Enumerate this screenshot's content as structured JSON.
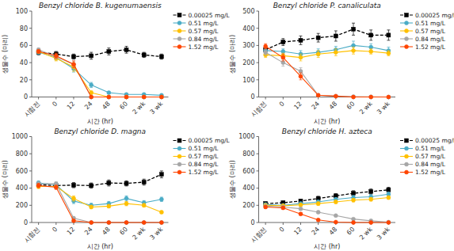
{
  "chart_data": [
    {
      "type": "line",
      "title": "Benzyl chloride B. kugenumaensis",
      "ylabel": "생물수 (마리)",
      "xlabel": "시간 (hr)",
      "categories": [
        "시험전",
        "0",
        "12",
        "24",
        "48",
        "60",
        "2 wk",
        "3 wk"
      ],
      "ylim": [
        0,
        100
      ],
      "yticks": [
        0,
        20,
        40,
        60,
        80,
        100
      ],
      "grid": false,
      "legend": "upper right",
      "series": [
        {
          "name": "0.00025 mg/L",
          "color": "black",
          "line_style": "dashed",
          "marker": "square",
          "values": [
            52,
            50,
            47,
            48,
            53,
            55,
            49,
            47
          ],
          "yerr": [
            3,
            3,
            3,
            4,
            4,
            4,
            3,
            3
          ]
        },
        {
          "name": "0.51 mg/L",
          "color": "#4bacc6",
          "line_style": "solid",
          "marker": "circle",
          "values": [
            52,
            46,
            33,
            14,
            5,
            3,
            3,
            2
          ],
          "yerr": [
            2,
            3,
            4,
            3,
            1,
            1,
            1,
            1
          ]
        },
        {
          "name": "0.57 mg/L",
          "color": "#ffc000",
          "line_style": "solid",
          "marker": "circle",
          "values": [
            53,
            45,
            35,
            5,
            0,
            0,
            0,
            0
          ],
          "yerr": [
            2,
            3,
            5,
            2,
            0,
            0,
            0,
            0
          ]
        },
        {
          "name": "0.84 mg/L",
          "color": "#a6a6a6",
          "line_style": "solid",
          "marker": "circle",
          "values": [
            55,
            47,
            38,
            0,
            0,
            0,
            0,
            0
          ],
          "yerr": [
            2,
            3,
            4,
            0,
            0,
            0,
            0,
            0
          ]
        },
        {
          "name": "1.52 mg/L",
          "color": "#ff4500",
          "line_style": "solid",
          "marker": "circle",
          "values": [
            53,
            48,
            38,
            0,
            0,
            0,
            0,
            0
          ],
          "yerr": [
            2,
            3,
            4,
            0,
            0,
            0,
            0,
            0
          ]
        }
      ]
    },
    {
      "type": "line",
      "title": "Benzyl chloride P. canaliculata",
      "ylabel": "생물수 (마리)",
      "xlabel": "시간 (hr)",
      "categories": [
        "시험전",
        "0",
        "12",
        "24",
        "48",
        "60",
        "2 wk",
        "3 wk"
      ],
      "ylim": [
        0,
        500
      ],
      "yticks": [
        0,
        100,
        200,
        300,
        400,
        500
      ],
      "grid": false,
      "legend": "upper right",
      "series": [
        {
          "name": "0.00025 mg/L",
          "color": "black",
          "line_style": "dashed",
          "marker": "square",
          "values": [
            275,
            320,
            330,
            345,
            355,
            395,
            360,
            360
          ],
          "yerr": [
            20,
            20,
            25,
            25,
            30,
            35,
            30,
            30
          ]
        },
        {
          "name": "0.51 mg/L",
          "color": "#4bacc6",
          "line_style": "solid",
          "marker": "circle",
          "values": [
            270,
            265,
            250,
            260,
            275,
            300,
            290,
            270
          ],
          "yerr": [
            15,
            15,
            20,
            20,
            20,
            25,
            20,
            20
          ]
        },
        {
          "name": "0.57 mg/L",
          "color": "#ffc000",
          "line_style": "solid",
          "marker": "circle",
          "values": [
            245,
            240,
            230,
            250,
            260,
            270,
            265,
            255
          ],
          "yerr": [
            15,
            15,
            20,
            20,
            20,
            20,
            15,
            15
          ]
        },
        {
          "name": "0.84 mg/L",
          "color": "#a6a6a6",
          "line_style": "solid",
          "marker": "circle",
          "values": [
            260,
            200,
            150,
            10,
            5,
            2,
            1,
            0
          ],
          "yerr": [
            15,
            20,
            20,
            5,
            2,
            1,
            1,
            0
          ]
        },
        {
          "name": "1.52 mg/L",
          "color": "#ff4500",
          "line_style": "solid",
          "marker": "circle",
          "values": [
            295,
            230,
            120,
            10,
            5,
            0,
            0,
            0
          ],
          "yerr": [
            15,
            20,
            20,
            5,
            2,
            0,
            0,
            0
          ]
        }
      ]
    },
    {
      "type": "line",
      "title": "Benzyl chloride D. magna",
      "ylabel": "생물수 (마리)",
      "xlabel": "시간 (hr)",
      "categories": [
        "시험전",
        "0",
        "12",
        "24",
        "48",
        "60",
        "2 wk",
        "3 wk"
      ],
      "ylim": [
        0,
        1000
      ],
      "yticks": [
        0,
        200,
        400,
        600,
        800,
        1000
      ],
      "grid": false,
      "legend": "upper right",
      "series": [
        {
          "name": "0.00025 mg/L",
          "color": "black",
          "line_style": "dashed",
          "marker": "square",
          "values": [
            440,
            430,
            435,
            430,
            460,
            455,
            470,
            560
          ],
          "yerr": [
            30,
            30,
            30,
            30,
            35,
            30,
            35,
            40
          ]
        },
        {
          "name": "0.51 mg/L",
          "color": "#4bacc6",
          "line_style": "solid",
          "marker": "circle",
          "values": [
            460,
            440,
            250,
            200,
            220,
            280,
            230,
            270
          ],
          "yerr": [
            25,
            25,
            30,
            25,
            25,
            30,
            25,
            25
          ]
        },
        {
          "name": "0.57 mg/L",
          "color": "#ffc000",
          "line_style": "solid",
          "marker": "circle",
          "values": [
            420,
            420,
            280,
            180,
            190,
            220,
            200,
            120
          ],
          "yerr": [
            25,
            25,
            30,
            20,
            20,
            25,
            20,
            15
          ]
        },
        {
          "name": "0.84 mg/L",
          "color": "#a6a6a6",
          "line_style": "solid",
          "marker": "circle",
          "values": [
            450,
            450,
            50,
            0,
            0,
            0,
            0,
            0
          ],
          "yerr": [
            25,
            25,
            15,
            0,
            0,
            0,
            0,
            0
          ]
        },
        {
          "name": "1.52 mg/L",
          "color": "#ff4500",
          "line_style": "solid",
          "marker": "circle",
          "values": [
            430,
            410,
            20,
            0,
            0,
            0,
            0,
            0
          ],
          "yerr": [
            25,
            25,
            10,
            0,
            0,
            0,
            0,
            0
          ]
        }
      ]
    },
    {
      "type": "line",
      "title": "Benzyl chloride H. azteca",
      "ylabel": "생물수 (마리)",
      "xlabel": "시간 (hr)",
      "categories": [
        "시험전",
        "0",
        "12",
        "24",
        "48",
        "60",
        "2 wk",
        "3 wk"
      ],
      "ylim": [
        0,
        1000
      ],
      "yticks": [
        0,
        200,
        400,
        600,
        800,
        1000
      ],
      "grid": false,
      "legend": "upper right",
      "series": [
        {
          "name": "0.00025 mg/L",
          "color": "black",
          "line_style": "dashed",
          "marker": "square",
          "values": [
            220,
            230,
            250,
            280,
            310,
            340,
            360,
            380
          ],
          "yerr": [
            20,
            20,
            20,
            25,
            25,
            30,
            30,
            30
          ]
        },
        {
          "name": "0.51 mg/L",
          "color": "#4bacc6",
          "line_style": "solid",
          "marker": "circle",
          "values": [
            210,
            200,
            220,
            240,
            270,
            290,
            300,
            330
          ],
          "yerr": [
            15,
            15,
            20,
            20,
            20,
            25,
            25,
            25
          ]
        },
        {
          "name": "0.57 mg/L",
          "color": "#ffc000",
          "line_style": "solid",
          "marker": "circle",
          "values": [
            200,
            195,
            205,
            220,
            240,
            260,
            270,
            290
          ],
          "yerr": [
            15,
            15,
            15,
            20,
            20,
            20,
            20,
            20
          ]
        },
        {
          "name": "0.84 mg/L",
          "color": "#a6a6a6",
          "line_style": "solid",
          "marker": "circle",
          "values": [
            190,
            180,
            160,
            120,
            80,
            40,
            20,
            5
          ],
          "yerr": [
            15,
            15,
            15,
            15,
            10,
            8,
            5,
            2
          ]
        },
        {
          "name": "1.52 mg/L",
          "color": "#ff4500",
          "line_style": "solid",
          "marker": "circle",
          "values": [
            180,
            170,
            100,
            30,
            5,
            0,
            0,
            0
          ],
          "yerr": [
            15,
            15,
            15,
            10,
            3,
            0,
            0,
            0
          ]
        }
      ]
    }
  ]
}
